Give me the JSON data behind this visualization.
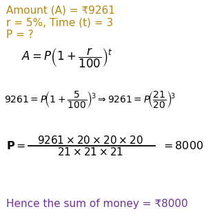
{
  "background_color": "#ffffff",
  "text_color_gold": "#b8860b",
  "text_color_black": "#000000",
  "text_color_purple": "#7030a0",
  "line1": "Amount (A) = ₹9261",
  "line2": "r = 5%, Time (t) = 3",
  "line3": "P = ?",
  "formula1": "$A = P\\left(1+\\dfrac{r}{100}\\right)^{t}$",
  "formula2": "$9261 = P\\left(1+\\dfrac{5}{100}\\right)^{3} \\Rightarrow 9261 = P\\left(\\dfrac{21}{20}\\right)^{3}$",
  "frac_num": "$9261\\times 20\\times 20\\times 20$",
  "frac_den": "$21\\times 21\\times 21$",
  "frac_label": "$\\mathbf{P} =$",
  "frac_result": "$= 8000$",
  "result_line": "Hence the sum of money = ₹8000",
  "figw": 3.12,
  "figh": 3.17,
  "dpi": 100
}
